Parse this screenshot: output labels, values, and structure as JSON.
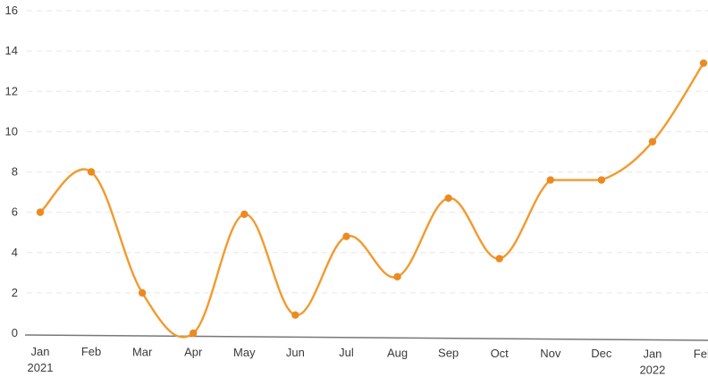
{
  "chart_data": {
    "type": "line",
    "title": "",
    "xlabel": "",
    "ylabel": "",
    "grid": true,
    "legend": "none",
    "ylim": [
      0,
      16
    ],
    "yticks": [
      "0",
      "2",
      "4",
      "6",
      "8",
      "10",
      "12",
      "14",
      "16"
    ],
    "categories": [
      "Jan 2021",
      "Feb",
      "Mar",
      "Apr",
      "May",
      "Jun",
      "Jul",
      "Aug",
      "Sep",
      "Oct",
      "Nov",
      "Dec",
      "Jan 2022",
      "Feb"
    ],
    "series": [
      {
        "color": "#f29a2e",
        "values": [
          6.0,
          8.0,
          2.0,
          0.0,
          5.9,
          0.9,
          4.8,
          2.8,
          6.7,
          3.7,
          7.6,
          7.6,
          9.5,
          13.4
        ]
      }
    ],
    "colors": {
      "line": "#f29a2e",
      "marker": "#ec8a22",
      "axis": "#777777",
      "grid": "#e6e6e6",
      "text": "#3a3a3a"
    }
  }
}
